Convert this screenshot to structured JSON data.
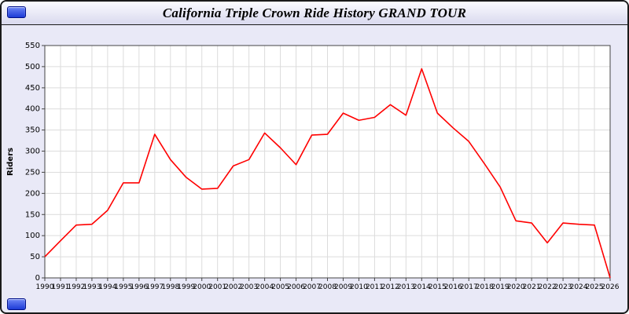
{
  "window": {
    "title": "California Triple Crown Ride History GRAND TOUR",
    "background": "#e9e9f7",
    "accent_color": "#1d3bd6"
  },
  "chart_data": {
    "type": "line",
    "title": "California Triple Crown Ride History GRAND TOUR",
    "xlabel": "",
    "ylabel": "Riders",
    "ylim": [
      0,
      550
    ],
    "ytick_step": 50,
    "grid": true,
    "legend": "none",
    "line_color": "#ff0000",
    "grid_color": "#dcdcdc",
    "axis_color": "#444444",
    "x": [
      1990,
      1991,
      1992,
      1993,
      1994,
      1995,
      1996,
      1997,
      1998,
      1999,
      2000,
      2001,
      2002,
      2003,
      2004,
      2005,
      2006,
      2007,
      2008,
      2009,
      2010,
      2011,
      2012,
      2013,
      2014,
      2015,
      2016,
      2017,
      2018,
      2019,
      2020,
      2021,
      2022,
      2023,
      2024,
      2025,
      2026
    ],
    "series": [
      {
        "name": "Riders",
        "values": [
          50,
          88,
          125,
          127,
          160,
          225,
          225,
          340,
          280,
          238,
          210,
          212,
          265,
          280,
          343,
          308,
          268,
          338,
          340,
          390,
          373,
          380,
          410,
          385,
          495,
          390,
          355,
          323,
          270,
          215,
          135,
          130,
          83,
          130,
          127,
          125,
          0
        ]
      }
    ]
  }
}
